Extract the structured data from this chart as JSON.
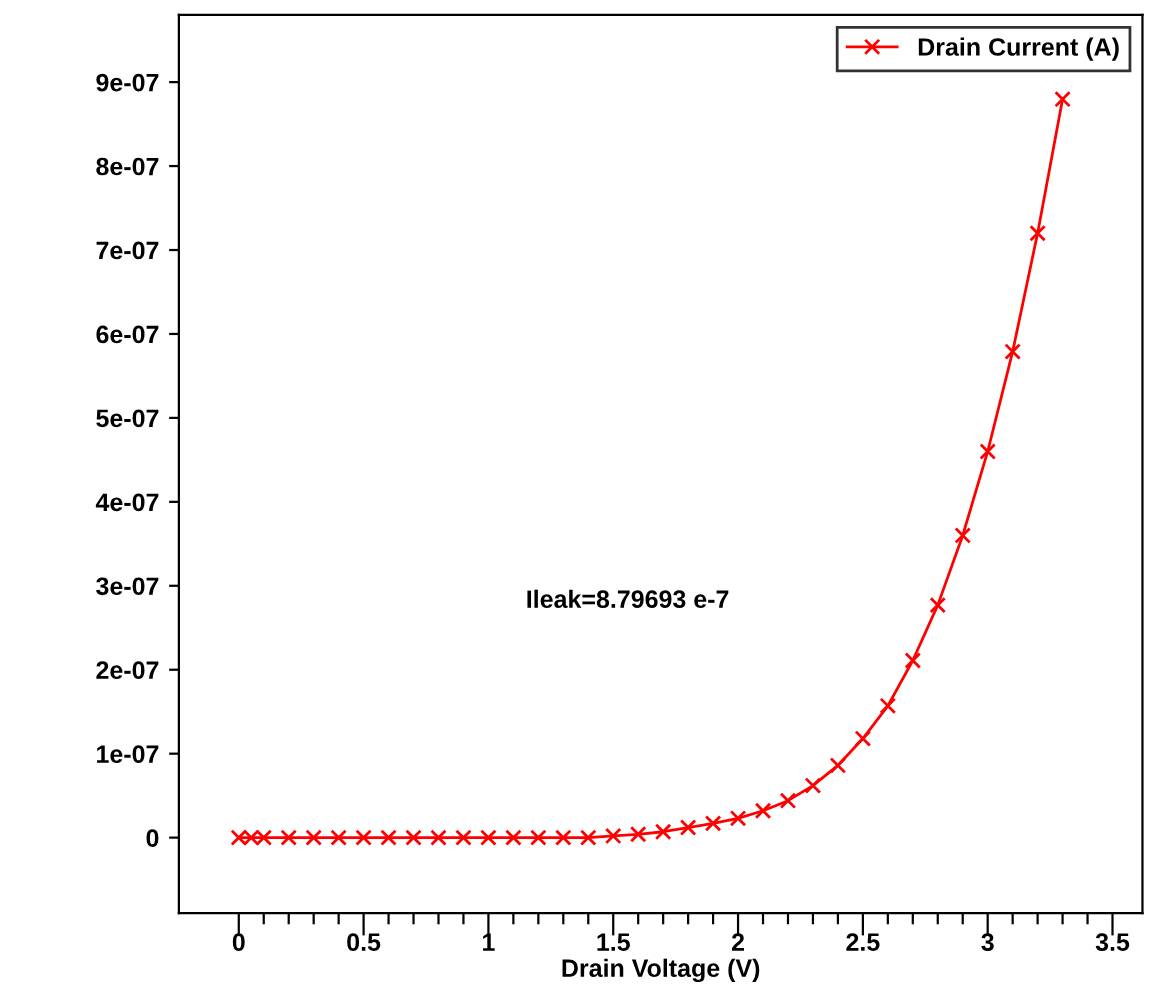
{
  "chart_data": {
    "type": "line",
    "xlabel": "Drain Voltage (V)",
    "annotations": [
      "Ileak=8.79693 e-7"
    ],
    "x": [
      0,
      0.05,
      0.1,
      0.2,
      0.3,
      0.4,
      0.5,
      0.6,
      0.7,
      0.8,
      0.9,
      1.0,
      1.1,
      1.2,
      1.3,
      1.4,
      1.5,
      1.6,
      1.7,
      1.8,
      1.9,
      2.0,
      2.1,
      2.2,
      2.3,
      2.4,
      2.5,
      2.6,
      2.7,
      2.8,
      2.9,
      3.0,
      3.1,
      3.2,
      3.3
    ],
    "series": [
      {
        "name": "Drain Current (A)",
        "color": "#ff0000",
        "values": [
          0,
          0,
          0,
          0,
          0,
          0,
          0,
          0,
          0,
          0,
          0,
          0,
          0,
          0,
          0,
          0,
          2e-09,
          4e-09,
          7e-09,
          1.2e-08,
          1.7e-08,
          2.3e-08,
          3.2e-08,
          4.4e-08,
          6.2e-08,
          8.6e-08,
          1.18e-07,
          1.57e-07,
          2.11e-07,
          2.77e-07,
          3.6e-07,
          4.6e-07,
          5.79e-07,
          7.2e-07,
          8.797e-07
        ]
      }
    ],
    "xlim": [
      -0.24,
      3.62
    ],
    "ylim": [
      -9e-08,
      9.8e-07
    ],
    "xticks": [
      0,
      {
        "value": 0.1,
        "label": null
      },
      {
        "value": 0.2,
        "label": null
      },
      {
        "value": 0.3,
        "label": null
      },
      {
        "value": 0.4,
        "label": null
      },
      0.5,
      {
        "value": 0.6,
        "label": null
      },
      {
        "value": 0.7,
        "label": null
      },
      {
        "value": 0.8,
        "label": null
      },
      {
        "value": 0.9,
        "label": null
      },
      1,
      {
        "value": 1.1,
        "label": null
      },
      {
        "value": 1.2,
        "label": null
      },
      {
        "value": 1.3,
        "label": null
      },
      {
        "value": 1.4,
        "label": null
      },
      1.5,
      {
        "value": 1.6,
        "label": null
      },
      {
        "value": 1.7,
        "label": null
      },
      {
        "value": 1.8,
        "label": null
      },
      {
        "value": 1.9,
        "label": null
      },
      2,
      {
        "value": 2.1,
        "label": null
      },
      {
        "value": 2.2,
        "label": null
      },
      {
        "value": 2.3,
        "label": null
      },
      {
        "value": 2.4,
        "label": null
      },
      2.5,
      {
        "value": 2.6,
        "label": null
      },
      {
        "value": 2.7,
        "label": null
      },
      {
        "value": 2.8,
        "label": null
      },
      {
        "value": 2.9,
        "label": null
      },
      3,
      {
        "value": 3.1,
        "label": null
      },
      {
        "value": 3.2,
        "label": null
      },
      {
        "value": 3.3,
        "label": null
      },
      {
        "value": 3.4,
        "label": null
      },
      3.5
    ],
    "yticks": [
      0,
      1e-07,
      2e-07,
      3e-07,
      4e-07,
      5e-07,
      6e-07,
      7e-07,
      8e-07,
      9e-07
    ],
    "legend": "top right",
    "marker": "cross",
    "line_style": "solid",
    "grid": false
  }
}
